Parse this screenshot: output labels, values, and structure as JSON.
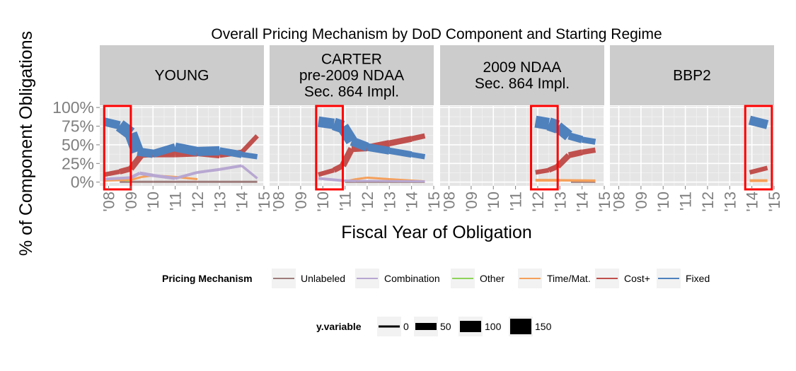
{
  "chart_data": {
    "type": "line",
    "title": "Overall Pricing Mechanism by DoD Component and Starting Regime",
    "xlabel": "Fiscal Year of Obligation",
    "ylabel": "% of Component Obligations",
    "x_ticks": [
      "'08",
      "'09",
      "'10",
      "'11",
      "'12",
      "'13",
      "'14",
      "'15"
    ],
    "y_ticks": [
      "0%",
      "25%",
      "50%",
      "75%",
      "100%"
    ],
    "xlim": [
      2007.6,
      2015.0
    ],
    "ylim": [
      -0.05,
      1.02
    ],
    "grid": true,
    "legend_placement": "bottom",
    "colors": {
      "Unlabeled": "#9e7c7c",
      "Combination": "#b7a7d1",
      "Other": "#8fd45a",
      "Time/Mat.": "#f5a05a",
      "Cost+": "#c0504d",
      "Fixed": "#4f81bd",
      "highlight": "#ff0000",
      "panel_bg": "#e5e5e5",
      "strip_bg": "#cccccc"
    },
    "legend": {
      "title": "Pricing Mechanism",
      "entries": [
        "Unlabeled",
        "Combination",
        "Other",
        "Time/Mat.",
        "Cost+",
        "Fixed"
      ]
    },
    "size_legend": {
      "title": "y.variable",
      "entries": [
        "0",
        "50",
        "100",
        "150"
      ]
    },
    "panels": [
      {
        "label": [
          "YOUNG"
        ],
        "highlight": [
          2007.8,
          2009.0
        ],
        "series": [
          {
            "name": "Fixed",
            "x": [
              2007.8,
              2008.5,
              2009.0,
              2009.3,
              2010.0,
              2011.0,
              2012.0,
              2013.0,
              2014.0,
              2014.7
            ],
            "y": [
              0.81,
              0.76,
              0.65,
              0.41,
              0.38,
              0.47,
              0.41,
              0.42,
              0.37,
              0.34
            ],
            "w": [
              10,
              14,
              22,
              14,
              10,
              12,
              14,
              12,
              8,
              7
            ]
          },
          {
            "name": "Cost+",
            "x": [
              2007.8,
              2008.5,
              2009.0,
              2009.5,
              2010.0,
              2011.0,
              2012.0,
              2013.0,
              2014.0,
              2014.7
            ],
            "y": [
              0.1,
              0.14,
              0.18,
              0.37,
              0.38,
              0.38,
              0.39,
              0.36,
              0.4,
              0.62
            ],
            "w": [
              6,
              7,
              9,
              9,
              10,
              10,
              10,
              8,
              7,
              6
            ]
          },
          {
            "name": "Combination",
            "x": [
              2007.8,
              2009.0,
              2009.4,
              2010.0,
              2011.0,
              2012.0,
              2013.0,
              2014.0,
              2014.7
            ],
            "y": [
              0.04,
              0.06,
              0.12,
              0.09,
              0.05,
              0.13,
              0.17,
              0.22,
              0.05
            ],
            "w": [
              4,
              4,
              5,
              5,
              4,
              4,
              4,
              4,
              3
            ]
          },
          {
            "name": "Time/Mat.",
            "x": [
              2007.8,
              2009.0,
              2009.5,
              2010.0,
              2011.0,
              2012.0
            ],
            "y": [
              0.02,
              0.03,
              0.07,
              0.09,
              0.07,
              0.04
            ],
            "w": [
              3,
              3,
              3,
              3,
              3,
              3
            ]
          },
          {
            "name": "Other",
            "x": [
              2007.8,
              2008.5,
              2009.0
            ],
            "y": [
              0.04,
              0.03,
              0.02
            ],
            "w": [
              3,
              3,
              3
            ]
          },
          {
            "name": "Unlabeled",
            "x": [
              2008.5,
              2010.0,
              2012.0,
              2014.7
            ],
            "y": [
              0.005,
              0.005,
              0.005,
              0.005
            ],
            "w": [
              3,
              3,
              3,
              3
            ]
          }
        ]
      },
      {
        "label": [
          "CARTER",
          "pre-2009 NDAA",
          "Sec. 864 Impl."
        ],
        "highlight": [
          2009.7,
          2010.9
        ],
        "series": [
          {
            "name": "Fixed",
            "x": [
              2009.8,
              2010.5,
              2010.9,
              2011.3,
              2012.0,
              2013.0,
              2014.0,
              2014.6
            ],
            "y": [
              0.81,
              0.78,
              0.74,
              0.55,
              0.47,
              0.42,
              0.37,
              0.34
            ],
            "w": [
              14,
              16,
              20,
              14,
              12,
              10,
              8,
              7
            ]
          },
          {
            "name": "Cost+",
            "x": [
              2009.8,
              2010.5,
              2010.9,
              2011.3,
              2012.0,
              2013.0,
              2014.0,
              2014.6
            ],
            "y": [
              0.1,
              0.16,
              0.22,
              0.45,
              0.46,
              0.52,
              0.58,
              0.62
            ],
            "w": [
              6,
              7,
              9,
              10,
              10,
              9,
              8,
              7
            ]
          },
          {
            "name": "Combination",
            "x": [
              2009.8,
              2010.9,
              2011.5,
              2012.5,
              2014.6
            ],
            "y": [
              0.05,
              0.02,
              0.015,
              0.015,
              0.01
            ],
            "w": [
              4,
              4,
              3,
              3,
              3
            ]
          },
          {
            "name": "Time/Mat.",
            "x": [
              2011.0,
              2011.5,
              2012.0,
              2013.0,
              2014.6
            ],
            "y": [
              0.01,
              0.04,
              0.06,
              0.04,
              0.01
            ],
            "w": [
              3,
              3,
              3,
              3,
              3
            ]
          },
          {
            "name": "Unlabeled",
            "x": [
              2011.0,
              2014.6
            ],
            "y": [
              0.005,
              0.005
            ],
            "w": [
              3,
              3
            ]
          }
        ]
      },
      {
        "label": [
          "2009 NDAA",
          "Sec. 864 Impl."
        ],
        "highlight": [
          2011.7,
          2012.9
        ],
        "series": [
          {
            "name": "Fixed",
            "x": [
              2011.9,
              2012.5,
              2012.9,
              2013.4,
              2014.0,
              2014.6
            ],
            "y": [
              0.81,
              0.78,
              0.74,
              0.62,
              0.57,
              0.54
            ],
            "w": [
              16,
              18,
              20,
              12,
              9,
              8
            ]
          },
          {
            "name": "Cost+",
            "x": [
              2011.9,
              2012.5,
              2012.9,
              2013.4,
              2014.0,
              2014.6
            ],
            "y": [
              0.13,
              0.16,
              0.21,
              0.36,
              0.4,
              0.43
            ],
            "w": [
              6,
              7,
              8,
              9,
              8,
              7
            ]
          },
          {
            "name": "Time/Mat.",
            "x": [
              2011.9,
              2013.0,
              2014.6
            ],
            "y": [
              0.025,
              0.025,
              0.02
            ],
            "w": [
              4,
              4,
              3
            ]
          },
          {
            "name": "Unlabeled",
            "x": [
              2013.5,
              2014.6
            ],
            "y": [
              0.005,
              0.005
            ],
            "w": [
              3,
              3
            ]
          }
        ]
      },
      {
        "label": [
          "BBP2"
        ],
        "highlight": [
          2013.7,
          2014.9
        ],
        "series": [
          {
            "name": "Fixed",
            "x": [
              2013.9,
              2014.7
            ],
            "y": [
              0.83,
              0.77
            ],
            "w": [
              14,
              12
            ]
          },
          {
            "name": "Cost+",
            "x": [
              2013.9,
              2014.7
            ],
            "y": [
              0.13,
              0.19
            ],
            "w": [
              6,
              7
            ]
          },
          {
            "name": "Time/Mat.",
            "x": [
              2013.9,
              2014.7
            ],
            "y": [
              0.02,
              0.02
            ],
            "w": [
              4,
              4
            ]
          }
        ]
      }
    ]
  }
}
